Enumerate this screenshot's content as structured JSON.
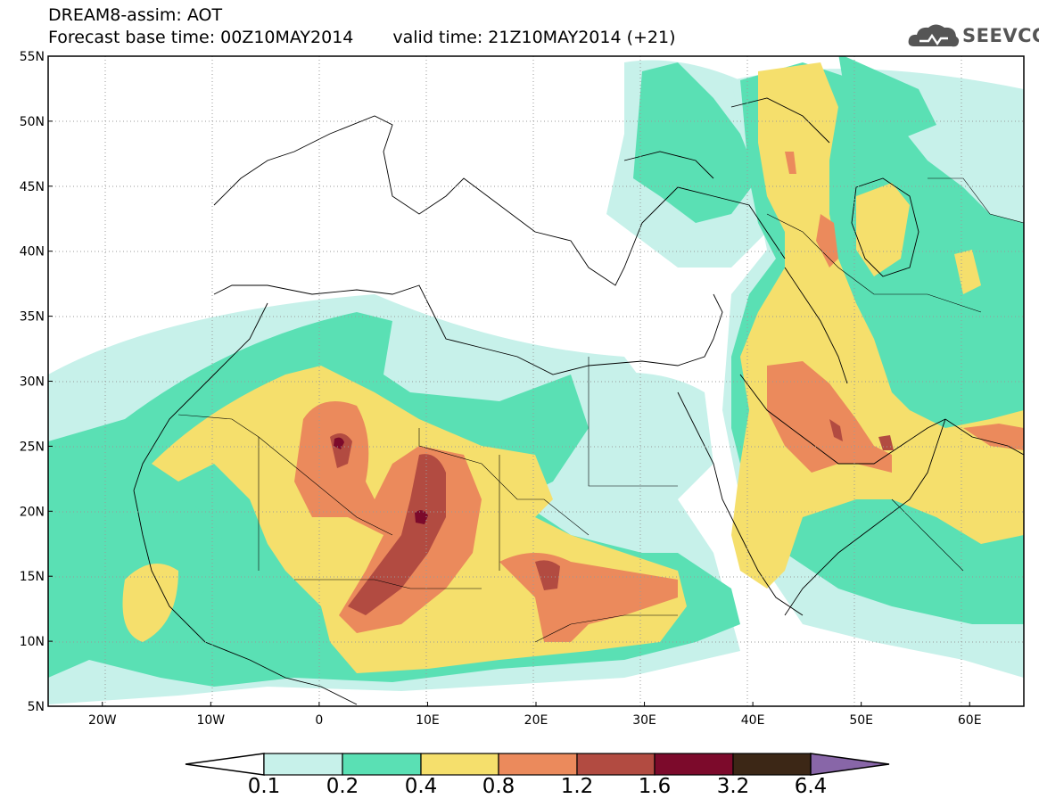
{
  "header": {
    "line1": "DREAM8-assim: AOT",
    "line2_base": "Forecast base time: 00Z10MAY2014",
    "line2_valid": "valid time: 21Z10MAY2014 (+21)"
  },
  "logo": {
    "text": "SEEVCCC",
    "icon": "cloud-logo-icon"
  },
  "axes": {
    "lat_labels": [
      "55N",
      "50N",
      "45N",
      "40N",
      "35N",
      "30N",
      "25N",
      "20N",
      "15N",
      "10N",
      "5N"
    ],
    "lon_labels": [
      "20W",
      "10W",
      "0",
      "10E",
      "20E",
      "30E",
      "40E",
      "50E",
      "60E"
    ],
    "lon_range": [
      -25,
      65
    ],
    "lat_range": [
      5,
      55
    ]
  },
  "colorbar": {
    "levels": [
      "0.1",
      "0.2",
      "0.4",
      "0.8",
      "1.2",
      "1.6",
      "3.2",
      "6.4"
    ],
    "colors": [
      "#ffffff",
      "#c7f1ea",
      "#5ae0b4",
      "#f5df6c",
      "#eb8a5c",
      "#b24b41",
      "#7c0a2b",
      "#3c2716",
      "#8866a8"
    ]
  }
}
